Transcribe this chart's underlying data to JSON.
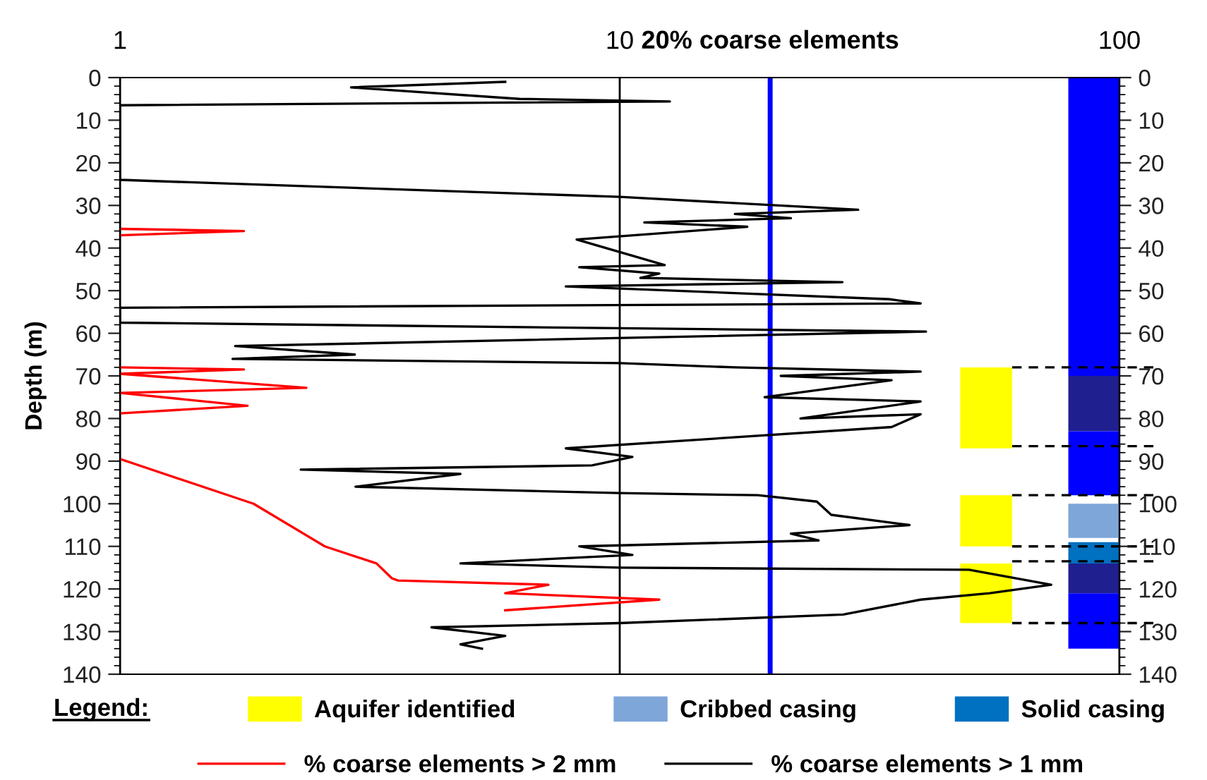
{
  "chart_data": {
    "type": "line",
    "ylabel": "Depth (m)",
    "legend_title": "Legend:",
    "xlim": [
      1,
      100
    ],
    "xticks": [
      1,
      10,
      100
    ],
    "log": "x",
    "ylim": [
      140,
      0
    ],
    "yticks": [
      0,
      10,
      20,
      30,
      40,
      50,
      60,
      70,
      80,
      90,
      100,
      110,
      120,
      130,
      140
    ],
    "y2lim": [
      140,
      0
    ],
    "y2ticks": [
      0,
      10,
      20,
      30,
      40,
      50,
      60,
      70,
      80,
      90,
      100,
      110,
      120,
      130,
      140
    ],
    "grid": "x",
    "legend": "bottom",
    "series": [
      {
        "name": "% coarse elements > 2 mm",
        "color": "#ff0000",
        "x": [
          1,
          1.77,
          1,
          null,
          1,
          1.77,
          1,
          2.36,
          1,
          1.8,
          1,
          null,
          1,
          1.85,
          2.57,
          3.26,
          3.5,
          3.6,
          7.2,
          5.9,
          12,
          5.9
        ],
        "values": [
          35.5,
          36,
          37,
          null,
          68,
          68.5,
          69.5,
          72.8,
          74,
          77,
          78.8,
          null,
          89.5,
          100,
          110,
          114,
          117.5,
          118,
          119,
          121,
          122.5,
          125
        ]
      },
      {
        "name": "% coarse elements > 1 mm",
        "color": "#000000",
        "x": [
          5.9,
          2.9,
          6.3,
          12.6,
          1,
          1,
          10,
          30,
          17,
          22,
          11.2,
          18,
          8.2,
          12.3,
          8.3,
          12,
          11,
          27.9,
          7.8,
          34.6,
          40,
          1,
          1,
          41,
          1.7,
          2.95,
          1.68,
          10,
          17,
          40,
          21,
          35,
          19.5,
          40,
          23,
          40,
          35,
          7.8,
          10.6,
          8.8,
          2.3,
          4.8,
          2.96,
          10,
          18.9,
          24.8,
          26.5,
          38,
          22,
          25,
          8.3,
          10.6,
          4.8,
          10,
          50,
          73,
          55,
          40,
          28,
          10,
          4.2,
          5.9,
          4.8,
          5.3
        ],
        "values": [
          1,
          2.3,
          5,
          5.6,
          6.5,
          24,
          28,
          31,
          32,
          33,
          34,
          35,
          38,
          44,
          44.5,
          46,
          47,
          48,
          49,
          52,
          53,
          54,
          57.5,
          59.6,
          63,
          65,
          66,
          67,
          68,
          69,
          70,
          71,
          75,
          76,
          80,
          79,
          82,
          87,
          89,
          91,
          92,
          93,
          96,
          97.5,
          98,
          99.5,
          102.6,
          105,
          107,
          108.6,
          110,
          112,
          114,
          115,
          115.5,
          119,
          121,
          122.5,
          126,
          128,
          129,
          131,
          133,
          134
        ]
      }
    ],
    "ref_lines": [
      {
        "axis": "x",
        "value": 20,
        "label": "20% coarse elements",
        "color": "#0000ff"
      },
      {
        "axis": "y",
        "value": 68,
        "color": "#000000",
        "line_style": "dashed"
      },
      {
        "axis": "y",
        "value": 86.5,
        "color": "#000000",
        "line_style": "dashed"
      },
      {
        "axis": "y",
        "value": 98,
        "color": "#000000",
        "line_style": "dashed"
      },
      {
        "axis": "y",
        "value": 110,
        "color": "#000000",
        "line_style": "dashed"
      },
      {
        "axis": "y",
        "value": 113.5,
        "color": "#000000",
        "line_style": "dashed"
      },
      {
        "axis": "y",
        "value": 128,
        "color": "#000000",
        "line_style": "dashed"
      }
    ],
    "bands": [
      {
        "axis": "y",
        "from": 68,
        "to": 87,
        "color": "#ffff00",
        "label": "Aquifer identified"
      },
      {
        "axis": "y",
        "from": 98,
        "to": 110,
        "color": "#ffff00"
      },
      {
        "axis": "y",
        "from": 114,
        "to": 128,
        "color": "#ffff00"
      },
      {
        "axis": "y",
        "from": 0,
        "to": 70,
        "color": "#0000ff"
      },
      {
        "axis": "y",
        "from": 70,
        "to": 83,
        "color": "#1f1f8f"
      },
      {
        "axis": "y",
        "from": 83,
        "to": 98,
        "color": "#0000ff"
      },
      {
        "axis": "y",
        "from": 100,
        "to": 108,
        "color": "#7fa6d9",
        "label": "Cribbed casing"
      },
      {
        "axis": "y",
        "from": 109,
        "to": 114,
        "color": "#0070c0",
        "label": "Solid casing"
      },
      {
        "axis": "y",
        "from": 114,
        "to": 121,
        "color": "#1f1f8f"
      },
      {
        "axis": "y",
        "from": 121,
        "to": 134,
        "color": "#0000ff"
      }
    ]
  }
}
